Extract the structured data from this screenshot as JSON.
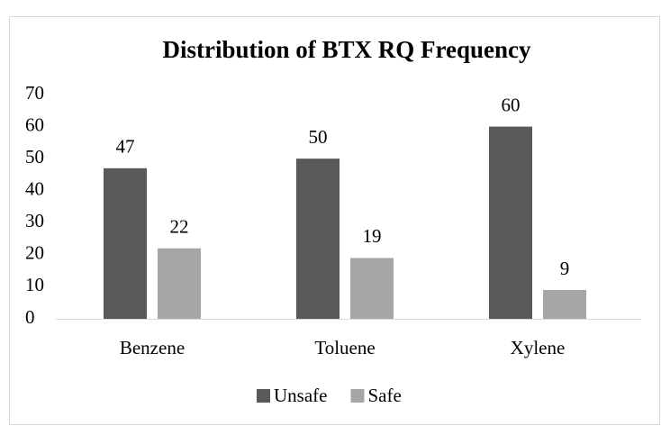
{
  "chart_data": {
    "type": "bar",
    "title": "Distribution of BTX RQ Frequency",
    "categories": [
      "Benzene",
      "Toluene",
      "Xylene"
    ],
    "series": [
      {
        "name": "Unsafe",
        "color": "#595959",
        "values": [
          47,
          50,
          60
        ]
      },
      {
        "name": "Safe",
        "color": "#a6a6a6",
        "values": [
          22,
          19,
          9
        ]
      }
    ],
    "ylim": [
      0,
      70
    ],
    "yticks": [
      0,
      10,
      20,
      30,
      40,
      50,
      60,
      70
    ],
    "grid": false,
    "legend": "bottom"
  }
}
